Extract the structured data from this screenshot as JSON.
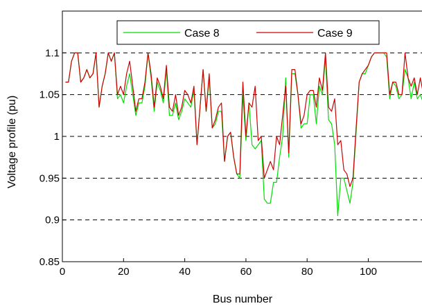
{
  "chart_data": {
    "type": "line",
    "xlabel": "Bus number",
    "ylabel": "Voltage profile (pu)",
    "xlim": [
      0,
      118
    ],
    "ylim": [
      0.85,
      1.15
    ],
    "xticks": [
      0,
      20,
      40,
      60,
      80,
      100
    ],
    "yticks": [
      0.85,
      0.9,
      0.95,
      1,
      1.05,
      1.1
    ],
    "ytick_labels": [
      "0.85",
      "0.9",
      "0.95",
      "1",
      "1.05",
      "1.1"
    ],
    "grid": "horizontal-dashed",
    "legend_position": "top",
    "series": [
      {
        "name": "Case 8",
        "color": "#00dd00",
        "x": [
          1,
          2,
          3,
          4,
          5,
          6,
          7,
          8,
          9,
          10,
          11,
          12,
          13,
          14,
          15,
          16,
          17,
          18,
          19,
          20,
          21,
          22,
          23,
          24,
          25,
          26,
          27,
          28,
          29,
          30,
          31,
          32,
          33,
          34,
          35,
          36,
          37,
          38,
          39,
          40,
          41,
          42,
          43,
          44,
          45,
          46,
          47,
          48,
          49,
          50,
          51,
          52,
          53,
          54,
          55,
          56,
          57,
          58,
          59,
          60,
          61,
          62,
          63,
          64,
          65,
          66,
          67,
          68,
          69,
          70,
          71,
          72,
          73,
          74,
          75,
          76,
          77,
          78,
          79,
          80,
          81,
          82,
          83,
          84,
          85,
          86,
          87,
          88,
          89,
          90,
          91,
          92,
          93,
          94,
          95,
          96,
          97,
          98,
          99,
          100,
          101,
          102,
          103,
          104,
          105,
          106,
          107,
          108,
          109,
          110,
          111,
          112,
          113,
          114,
          115,
          116,
          117,
          118
        ],
        "y": [
          1.065,
          1.065,
          1.09,
          1.1,
          1.1,
          1.065,
          1.07,
          1.08,
          1.07,
          1.075,
          1.1,
          1.035,
          1.06,
          1.075,
          1.1,
          1.09,
          1.1,
          1.045,
          1.05,
          1.04,
          1.06,
          1.075,
          1.05,
          1.025,
          1.04,
          1.04,
          1.06,
          1.1,
          1.07,
          1.03,
          1.065,
          1.055,
          1.04,
          1.08,
          1.025,
          1.025,
          1.04,
          1.02,
          1.03,
          1.045,
          1.04,
          1.035,
          1.055,
          0.99,
          1.035,
          1.08,
          1.03,
          1.07,
          1.01,
          1.015,
          1.03,
          1.03,
          0.97,
          1.0,
          1.005,
          0.975,
          0.955,
          0.95,
          1.05,
          0.995,
          1.04,
          0.99,
          0.985,
          0.99,
          0.995,
          0.925,
          0.92,
          0.92,
          0.945,
          0.945,
          0.975,
          1.0,
          1.07,
          0.975,
          1.075,
          1.075,
          1.05,
          1.01,
          1.015,
          1.015,
          1.05,
          1.05,
          1.015,
          1.06,
          1.05,
          1.095,
          1.02,
          1.015,
          0.99,
          0.905,
          0.95,
          0.95,
          0.935,
          0.92,
          0.945,
          1.005,
          1.065,
          1.075,
          1.075,
          1.085,
          1.095,
          1.1,
          1.1,
          1.1,
          1.1,
          1.095,
          1.045,
          1.065,
          1.06,
          1.045,
          1.05,
          1.08,
          1.07,
          1.045,
          1.065,
          1.045,
          1.05,
          1.04
        ]
      },
      {
        "name": "Case 9",
        "color": "#cc0000",
        "x": [
          1,
          2,
          3,
          4,
          5,
          6,
          7,
          8,
          9,
          10,
          11,
          12,
          13,
          14,
          15,
          16,
          17,
          18,
          19,
          20,
          21,
          22,
          23,
          24,
          25,
          26,
          27,
          28,
          29,
          30,
          31,
          32,
          33,
          34,
          35,
          36,
          37,
          38,
          39,
          40,
          41,
          42,
          43,
          44,
          45,
          46,
          47,
          48,
          49,
          50,
          51,
          52,
          53,
          54,
          55,
          56,
          57,
          58,
          59,
          60,
          61,
          62,
          63,
          64,
          65,
          66,
          67,
          68,
          69,
          70,
          71,
          72,
          73,
          74,
          75,
          76,
          77,
          78,
          79,
          80,
          81,
          82,
          83,
          84,
          85,
          86,
          87,
          88,
          89,
          90,
          91,
          92,
          93,
          94,
          95,
          96,
          97,
          98,
          99,
          100,
          101,
          102,
          103,
          104,
          105,
          106,
          107,
          108,
          109,
          110,
          111,
          112,
          113,
          114,
          115,
          116,
          117,
          118
        ],
        "y": [
          1.065,
          1.065,
          1.09,
          1.1,
          1.1,
          1.065,
          1.07,
          1.08,
          1.07,
          1.075,
          1.1,
          1.035,
          1.06,
          1.075,
          1.1,
          1.09,
          1.1,
          1.05,
          1.06,
          1.05,
          1.075,
          1.09,
          1.06,
          1.03,
          1.045,
          1.045,
          1.065,
          1.1,
          1.075,
          1.035,
          1.07,
          1.06,
          1.045,
          1.085,
          1.035,
          1.03,
          1.05,
          1.025,
          1.035,
          1.055,
          1.05,
          1.04,
          1.06,
          0.99,
          1.035,
          1.08,
          1.03,
          1.075,
          1.01,
          1.02,
          1.035,
          1.04,
          0.97,
          1.0,
          1.005,
          0.975,
          0.955,
          0.955,
          1.065,
          1.0,
          1.04,
          1.035,
          1.06,
          0.995,
          1.0,
          0.95,
          0.96,
          0.97,
          0.96,
          1.0,
          0.99,
          1.025,
          1.06,
          0.98,
          1.08,
          1.08,
          1.05,
          1.015,
          1.025,
          1.05,
          1.055,
          1.055,
          1.035,
          1.07,
          1.055,
          1.1,
          1.035,
          1.03,
          1.045,
          0.99,
          0.995,
          0.96,
          0.955,
          0.94,
          0.95,
          1.01,
          1.065,
          1.075,
          1.08,
          1.085,
          1.095,
          1.1,
          1.1,
          1.1,
          1.1,
          1.1,
          1.05,
          1.065,
          1.065,
          1.05,
          1.05,
          1.1,
          1.07,
          1.06,
          1.07,
          1.05,
          1.07,
          1.05
        ]
      }
    ]
  }
}
